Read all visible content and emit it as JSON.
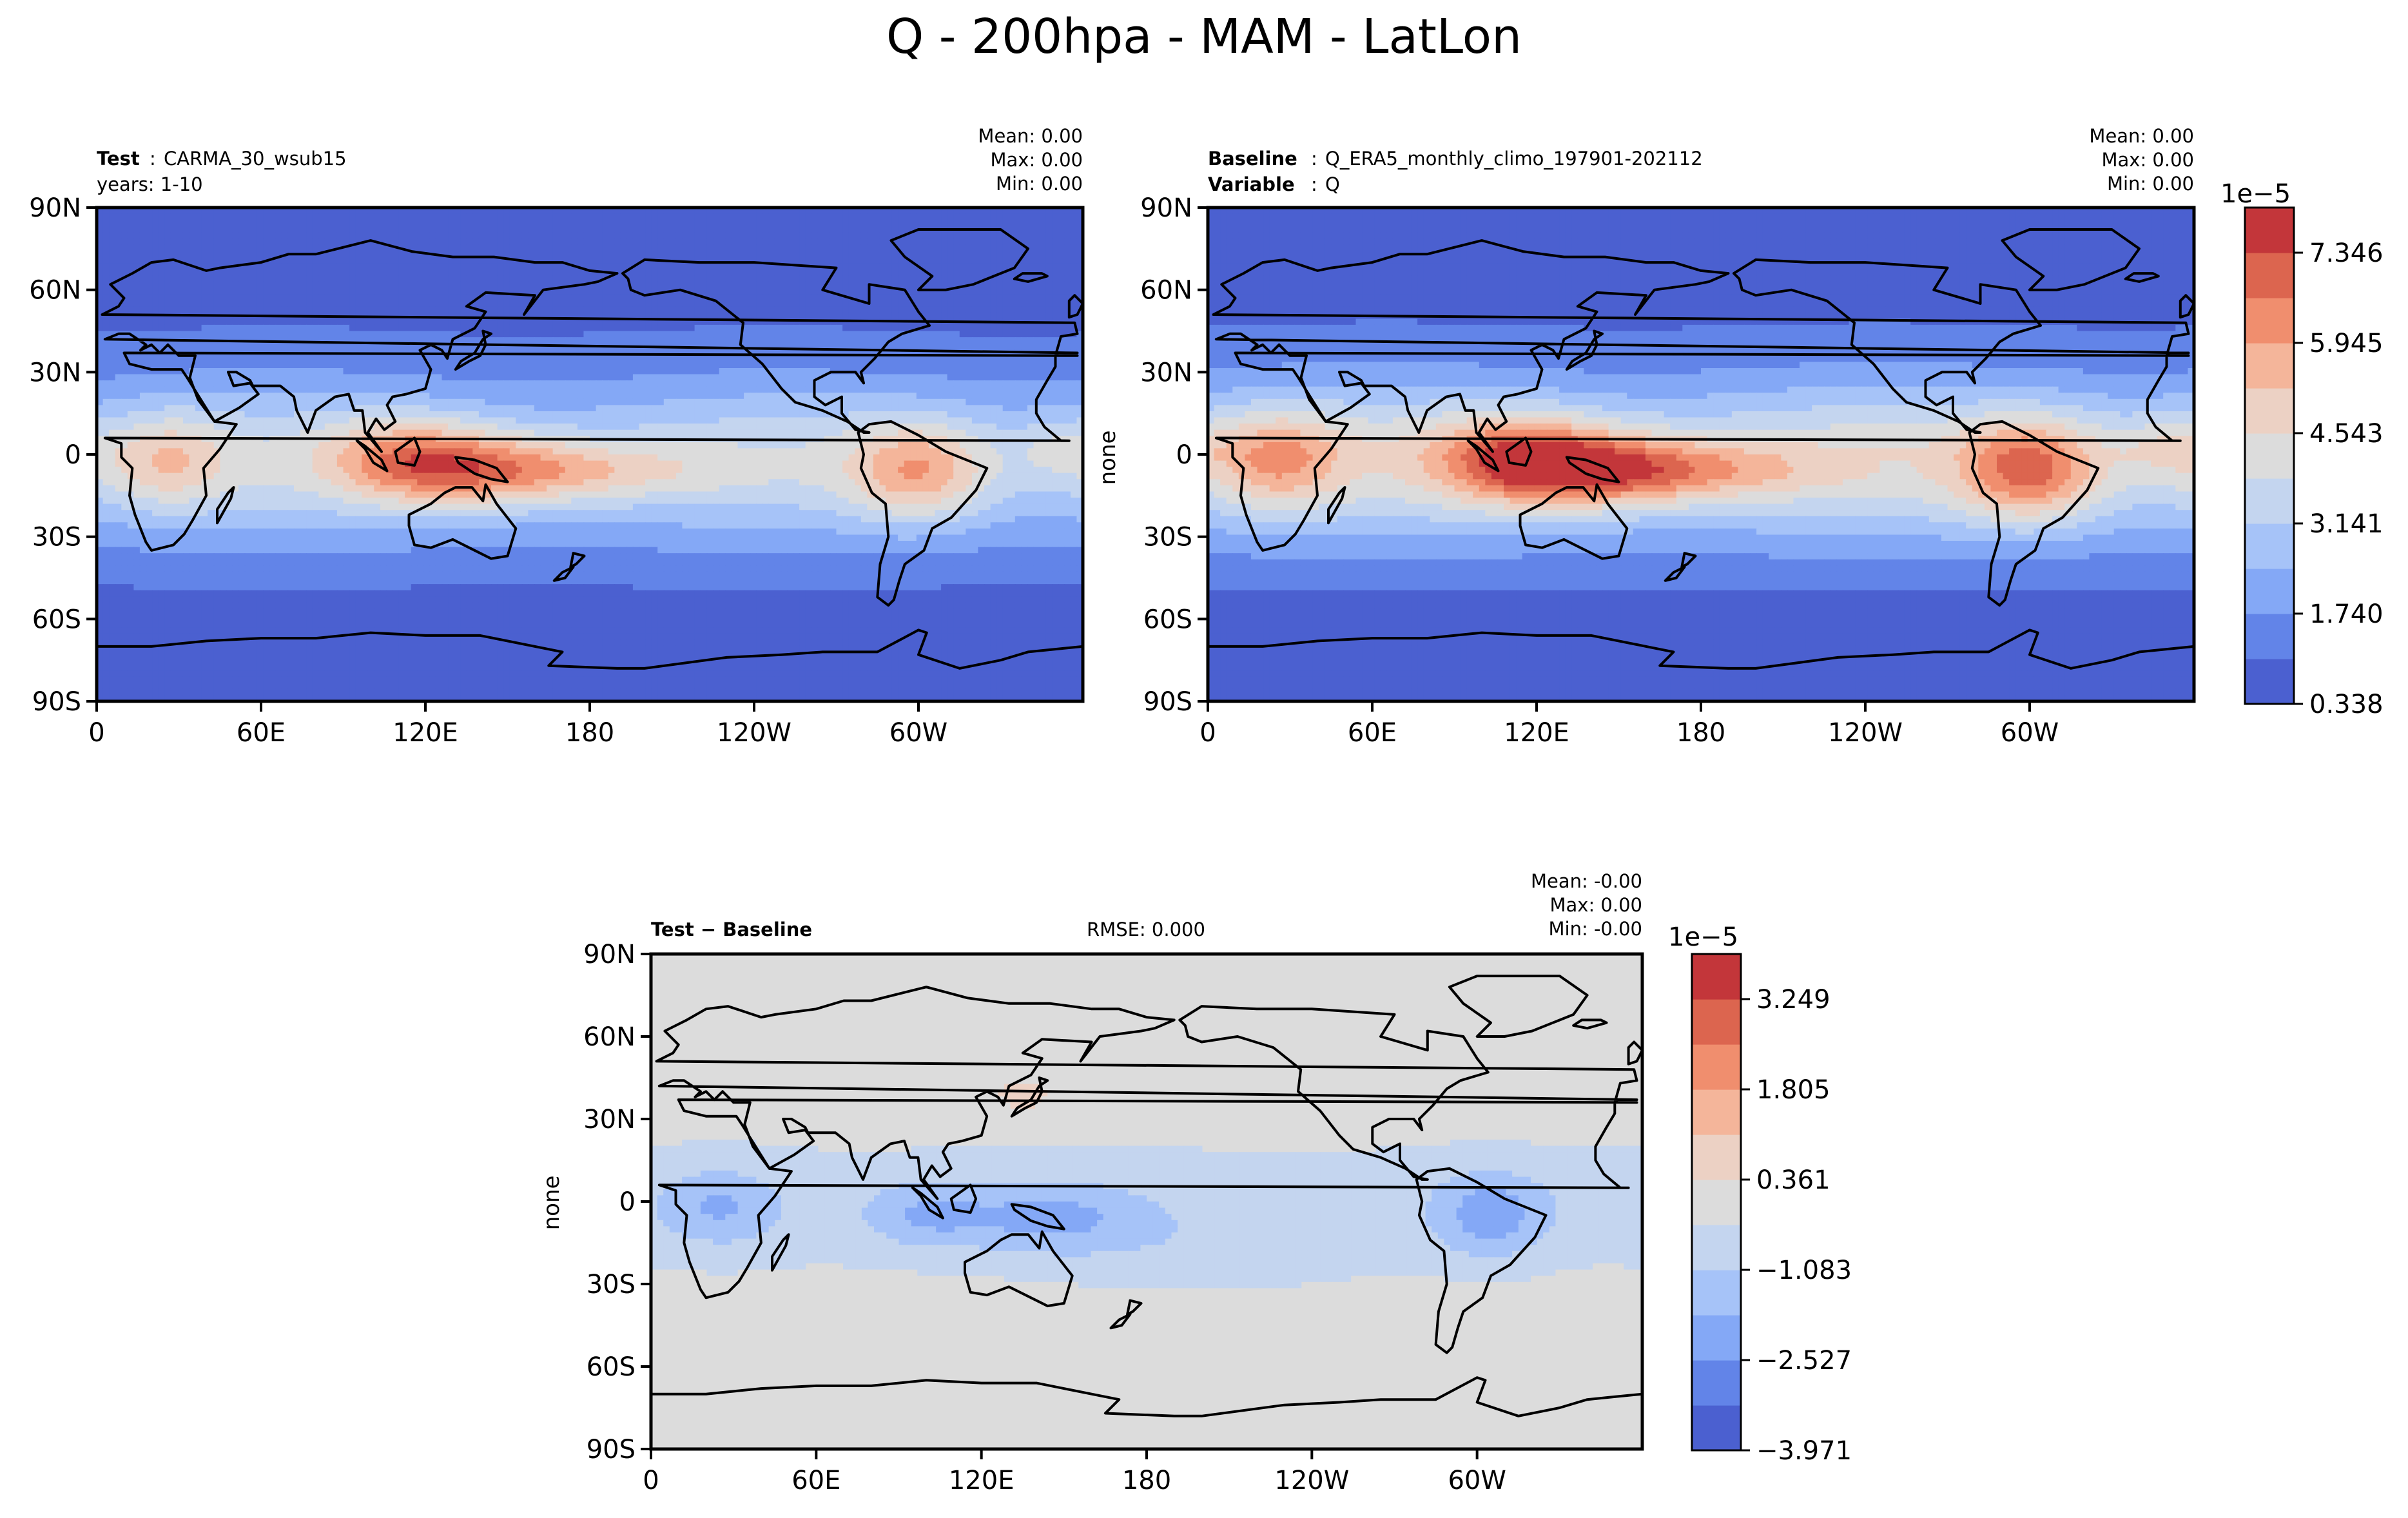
{
  "figure": {
    "suptitle": "Q - 200hpa - MAM - LatLon"
  },
  "chart_data": [
    {
      "type": "heatmap",
      "panel": "test",
      "header_left": {
        "line1_bold": "Test",
        "line1_value": "CARMA_30_wsub15",
        "line2": "years: 1-10"
      },
      "stats": {
        "mean": "Mean:  0.00",
        "max": "Max:  0.00",
        "min": "Min:  0.00"
      },
      "ylabel": "",
      "x_ticks": [
        "0",
        "60E",
        "120E",
        "180",
        "120W",
        "60W"
      ],
      "y_ticks": [
        "90N",
        "60N",
        "30N",
        "0",
        "30S",
        "60S",
        "90S"
      ],
      "xlim": [
        0,
        360
      ],
      "ylim": [
        -90,
        90
      ],
      "features": {
        "tropical_peak": 0.45,
        "nh_amplitude": 0.34,
        "sh_amplitude": 0.34,
        "itcz_latitude": -3
      }
    },
    {
      "type": "heatmap",
      "panel": "baseline",
      "header_left": {
        "line1_bold": "Baseline",
        "line1_value": "Q_ERA5_monthly_climo_197901-202112",
        "line2_bold": "Variable",
        "line2_value": "Q"
      },
      "stats": {
        "mean": "Mean:  0.00",
        "max": "Max:  0.00",
        "min": "Min:  0.00"
      },
      "ylabel": "none",
      "x_ticks": [
        "0",
        "60E",
        "120E",
        "180",
        "120W",
        "60W"
      ],
      "y_ticks": [
        "90N",
        "60N",
        "30N",
        "0",
        "30S",
        "60S",
        "90S"
      ],
      "xlim": [
        0,
        360
      ],
      "ylim": [
        -90,
        90
      ],
      "features": {
        "tropical_peak": 0.55,
        "nh_amplitude": 0.42,
        "sh_amplitude": 0.4,
        "itcz_latitude": -3
      },
      "colorbar": {
        "multiplier": "1e−5",
        "tick_labels": [
          "7.346",
          "5.945",
          "4.543",
          "3.141",
          "1.740",
          "0.338"
        ],
        "levels": [
          0.338,
          1.039,
          1.74,
          2.44,
          3.141,
          3.842,
          4.543,
          5.244,
          5.945,
          6.646,
          7.346,
          8.047
        ],
        "colors": [
          "#4b60d0",
          "#6284e8",
          "#84a8f6",
          "#a6c3f8",
          "#c4d5ef",
          "#dcdcdc",
          "#ecd1c4",
          "#f4b59a",
          "#f08e6e",
          "#dc654f",
          "#c3363a"
        ]
      }
    },
    {
      "type": "heatmap",
      "panel": "difference",
      "header_left": {
        "line1_bold": "Test − Baseline"
      },
      "header_center": "RMSE: 0.000",
      "stats": {
        "mean": "Mean: -0.00",
        "max": "Max:  0.00",
        "min": "Min: -0.00"
      },
      "ylabel": "none",
      "x_ticks": [
        "0",
        "60E",
        "120E",
        "180",
        "120W",
        "60W"
      ],
      "y_ticks": [
        "90N",
        "60N",
        "30N",
        "0",
        "30S",
        "60S",
        "90S"
      ],
      "xlim": [
        0,
        360
      ],
      "ylim": [
        -90,
        90
      ],
      "colorbar": {
        "multiplier": "1e−5",
        "tick_labels": [
          "3.249",
          "1.805",
          "0.361",
          "−1.083",
          "−2.527",
          "−3.971"
        ],
        "levels": [
          -3.971,
          -3.249,
          -2.527,
          -1.805,
          -1.083,
          -0.361,
          0.361,
          1.083,
          1.805,
          2.527,
          3.249,
          3.971
        ],
        "colors": [
          "#4b60d0",
          "#6284e8",
          "#84a8f6",
          "#a6c3f8",
          "#c4d5ef",
          "#dcdcdc",
          "#ecd1c4",
          "#f4b59a",
          "#f08e6e",
          "#dc654f",
          "#c3363a"
        ]
      }
    }
  ],
  "colors": {
    "ocean_base": "#4b60d0",
    "coastline": "#000000",
    "axes": "#000000"
  }
}
